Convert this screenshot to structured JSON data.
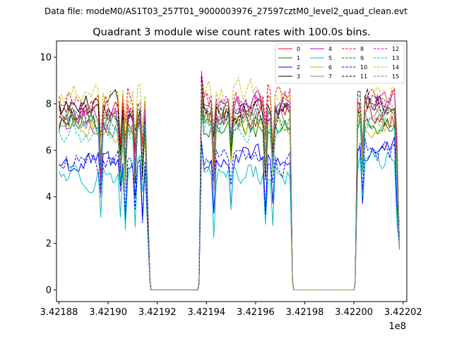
{
  "chart_data": {
    "type": "line",
    "suptitle": "Data file: modeM0/AS1T03_257T01_9000003976_27597cztM0_level2_quad_clean.evt",
    "title": "Quadrant 3 module wise count rates with 100.0s bins.",
    "xlabel": "",
    "ylabel": "",
    "x_offset_label": "1e8",
    "xlim": [
      3.421879,
      3.4220215
    ],
    "ylim": [
      -0.5,
      10.7
    ],
    "x_ticks": [
      3.42188,
      3.4219,
      3.42192,
      3.42194,
      3.42196,
      3.42198,
      3.422,
      3.42202
    ],
    "x_tick_labels": [
      "3.42188",
      "3.42190",
      "3.42192",
      "3.42194",
      "3.42196",
      "3.42198",
      "3.42200",
      "3.42202"
    ],
    "y_ticks": [
      0,
      2,
      4,
      6,
      8,
      10
    ],
    "y_tick_labels": [
      "0",
      "2",
      "4",
      "6",
      "8",
      "10"
    ],
    "legend_position": "top-right",
    "segments": [
      {
        "start": 3.42188,
        "rise_end": 3.42188,
        "fall_start": 3.421915,
        "end": 3.421917
      },
      {
        "start": 3.421937,
        "rise_end": 3.421938,
        "fall_start": 3.421974,
        "end": 3.421975
      },
      {
        "start": 3.4220005,
        "rise_end": 3.4220015,
        "fall_start": 3.422018,
        "end": 3.4220185
      }
    ],
    "series": [
      {
        "name": "0",
        "color": "#ff0000",
        "dash": false,
        "levels": [
          7.7,
          7.6,
          7.5
        ]
      },
      {
        "name": "1",
        "color": "#008000",
        "dash": false,
        "levels": [
          7.2,
          7.0,
          7.3
        ]
      },
      {
        "name": "2",
        "color": "#0000ff",
        "dash": false,
        "levels": [
          5.4,
          5.6,
          6.0
        ]
      },
      {
        "name": "3",
        "color": "#000000",
        "dash": false,
        "levels": [
          7.8,
          7.5,
          8.0
        ]
      },
      {
        "name": "4",
        "color": "#bf00bf",
        "dash": false,
        "levels": [
          7.3,
          7.8,
          8.1
        ]
      },
      {
        "name": "5",
        "color": "#00bfbf",
        "dash": false,
        "levels": [
          5.0,
          5.0,
          5.6
        ]
      },
      {
        "name": "6",
        "color": "#bfbf00",
        "dash": false,
        "levels": [
          7.0,
          7.2,
          7.2
        ]
      },
      {
        "name": "7",
        "color": "#808080",
        "dash": false,
        "levels": [
          7.1,
          7.4,
          7.6
        ]
      },
      {
        "name": "8",
        "color": "#ff0000",
        "dash": true,
        "levels": [
          8.1,
          8.2,
          8.1
        ]
      },
      {
        "name": "9",
        "color": "#008000",
        "dash": true,
        "levels": [
          7.3,
          7.2,
          7.4
        ]
      },
      {
        "name": "10",
        "color": "#0000ff",
        "dash": true,
        "levels": [
          5.4,
          5.5,
          5.9
        ]
      },
      {
        "name": "11",
        "color": "#000000",
        "dash": true,
        "levels": [
          7.6,
          7.6,
          8.1
        ]
      },
      {
        "name": "12",
        "color": "#bf00bf",
        "dash": true,
        "levels": [
          7.6,
          7.9,
          8.0
        ]
      },
      {
        "name": "13",
        "color": "#00bfbf",
        "dash": true,
        "levels": [
          6.7,
          7.0,
          7.2
        ]
      },
      {
        "name": "14",
        "color": "#bfbf00",
        "dash": true,
        "levels": [
          8.3,
          8.5,
          8.3
        ]
      },
      {
        "name": "15",
        "color": "#808080",
        "dash": true,
        "levels": [
          7.5,
          7.6,
          7.8
        ]
      }
    ]
  }
}
